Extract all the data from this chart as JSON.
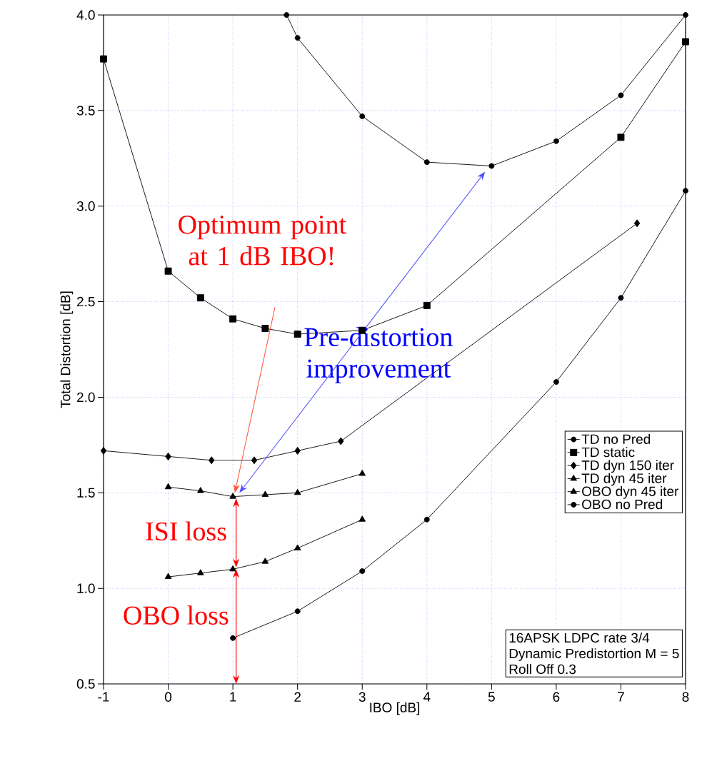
{
  "chart_data": {
    "type": "line",
    "xlabel": "IBO [dB]",
    "ylabel": "Total Distortion [dB]",
    "xlim": [
      -1,
      8
    ],
    "ylim": [
      0.5,
      4.0
    ],
    "xticks": [
      -1,
      0,
      1,
      2,
      3,
      4,
      5,
      6,
      7,
      8
    ],
    "yticks": [
      {
        "value": 0.5,
        "label": "0.5"
      },
      {
        "value": 1.0,
        "label": "1.0"
      },
      {
        "value": 1.5,
        "label": "1.5"
      },
      {
        "value": 2.0,
        "label": "2.0"
      },
      {
        "value": 2.5,
        "label": "2.5"
      },
      {
        "value": 3.0,
        "label": "3.0"
      },
      {
        "value": 3.5,
        "label": "3.5"
      },
      {
        "value": 4.0,
        "label": "4.0"
      }
    ],
    "grid": true,
    "legend": "bottom right",
    "line_style": "solid",
    "series": [
      {
        "name": "TD no Pred",
        "color": "#000000",
        "marker": "circle",
        "x": [
          1.83,
          2,
          3,
          4,
          5,
          6,
          7,
          8
        ],
        "values": [
          4.0,
          3.88,
          3.47,
          3.23,
          3.21,
          3.34,
          3.58,
          4.0
        ]
      },
      {
        "name": "TD static",
        "color": "#000000",
        "marker": "square",
        "x": [
          -1,
          0,
          0.5,
          1,
          1.5,
          2,
          3,
          4,
          7,
          8
        ],
        "values": [
          3.77,
          2.66,
          2.52,
          2.41,
          2.36,
          2.33,
          2.35,
          2.48,
          3.36,
          3.86
        ]
      },
      {
        "name": "TD dyn 150 iter",
        "color": "#000000",
        "marker": "diamond",
        "x": [
          -1,
          0,
          0.67,
          1.33,
          2,
          2.67,
          7.25
        ],
        "values": [
          1.72,
          1.69,
          1.67,
          1.67,
          1.72,
          1.77,
          2.91
        ]
      },
      {
        "name": "TD dyn 45 iter",
        "color": "#000000",
        "marker": "triangle",
        "x": [
          0,
          0.5,
          1,
          1.5,
          2,
          3
        ],
        "values": [
          1.53,
          1.51,
          1.48,
          1.49,
          1.5,
          1.6
        ]
      },
      {
        "name": "OBO dyn 45 iter",
        "color": "#000000",
        "marker": "triangle",
        "x": [
          0,
          0.5,
          1,
          1.5,
          2,
          3
        ],
        "values": [
          1.06,
          1.08,
          1.1,
          1.14,
          1.21,
          1.36
        ]
      },
      {
        "name": "OBO no Pred",
        "color": "#000000",
        "marker": "circle",
        "x": [
          1,
          2,
          3,
          4,
          6,
          7,
          8
        ],
        "values": [
          0.74,
          0.88,
          1.09,
          1.36,
          2.08,
          2.52,
          3.08
        ]
      }
    ],
    "annotations": [
      "Optimum point at 1 dB IBO!",
      "Pre-distortion improvement",
      "ISI loss",
      "OBO loss",
      "16APSK LDPC rate 3/4",
      "Dynamic Predistortion M = 5",
      "Roll Off 0.3"
    ]
  }
}
